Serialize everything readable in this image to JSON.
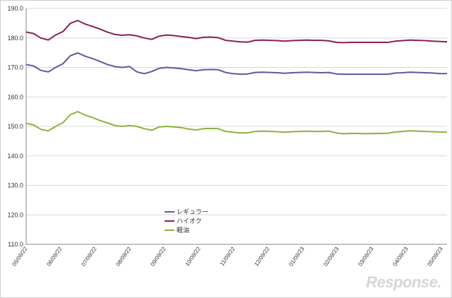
{
  "chart_data": {
    "type": "line",
    "ylim": [
      110.0,
      190.0
    ],
    "y_ticks": [
      "110.0",
      "120.0",
      "130.0",
      "140.0",
      "150.0",
      "160.0",
      "170.0",
      "180.0",
      "190.0"
    ],
    "x_tick_labels": [
      "05/09/22",
      "06/09/22",
      "07/09/22",
      "08/09/22",
      "09/09/22",
      "10/09/22",
      "11/09/22",
      "12/09/22",
      "01/09/23",
      "02/09/23",
      "03/09/23",
      "04/09/23",
      "05/09/23"
    ],
    "grid": "horizontal",
    "legend_placement": "center",
    "series": [
      {
        "name": "レギュラー",
        "color": "#5b5aa0",
        "values": [
          171.0,
          170.5,
          169.0,
          168.5,
          170.0,
          171.3,
          174.0,
          174.9,
          173.8,
          173.0,
          172.0,
          171.0,
          170.3,
          170.0,
          170.3,
          168.5,
          167.9,
          168.6,
          169.7,
          170.0,
          169.8,
          169.6,
          169.2,
          168.9,
          169.2,
          169.3,
          169.2,
          168.3,
          167.9,
          167.7,
          167.8,
          168.3,
          168.4,
          168.3,
          168.2,
          168.0,
          168.2,
          168.3,
          168.4,
          168.3,
          168.2,
          168.3,
          167.8,
          167.7,
          167.7,
          167.7,
          167.7,
          167.7,
          167.7,
          167.7,
          168.1,
          168.2,
          168.4,
          168.3,
          168.2,
          168.1,
          167.9,
          167.9
        ]
      },
      {
        "name": "ハイオク",
        "color": "#8a2057",
        "values": [
          182.0,
          181.5,
          180.0,
          179.3,
          181.0,
          182.2,
          185.0,
          185.9,
          184.7,
          183.9,
          183.0,
          182.0,
          181.2,
          180.9,
          181.1,
          180.7,
          180.0,
          179.5,
          180.6,
          181.0,
          180.8,
          180.5,
          180.2,
          179.8,
          180.2,
          180.3,
          180.1,
          179.2,
          178.9,
          178.7,
          178.6,
          179.2,
          179.3,
          179.2,
          179.1,
          178.9,
          179.1,
          179.2,
          179.3,
          179.2,
          179.2,
          179.0,
          178.5,
          178.4,
          178.5,
          178.5,
          178.5,
          178.5,
          178.5,
          178.5,
          178.9,
          179.1,
          179.3,
          179.2,
          179.1,
          178.9,
          178.8,
          178.7
        ]
      },
      {
        "name": "軽油",
        "color": "#8db33a",
        "values": [
          151.0,
          150.5,
          149.0,
          148.5,
          150.0,
          151.3,
          154.0,
          155.0,
          153.8,
          153.0,
          152.0,
          151.2,
          150.3,
          150.0,
          150.3,
          150.0,
          149.2,
          148.7,
          149.8,
          150.0,
          149.8,
          149.6,
          149.1,
          148.8,
          149.2,
          149.3,
          149.2,
          148.3,
          148.0,
          147.8,
          147.8,
          148.3,
          148.4,
          148.3,
          148.2,
          148.0,
          148.2,
          148.3,
          148.4,
          148.3,
          148.3,
          148.4,
          147.8,
          147.5,
          147.6,
          147.6,
          147.5,
          147.6,
          147.6,
          147.7,
          148.1,
          148.3,
          148.5,
          148.4,
          148.3,
          148.2,
          148.1,
          148.0
        ]
      }
    ]
  },
  "watermark": "Response."
}
